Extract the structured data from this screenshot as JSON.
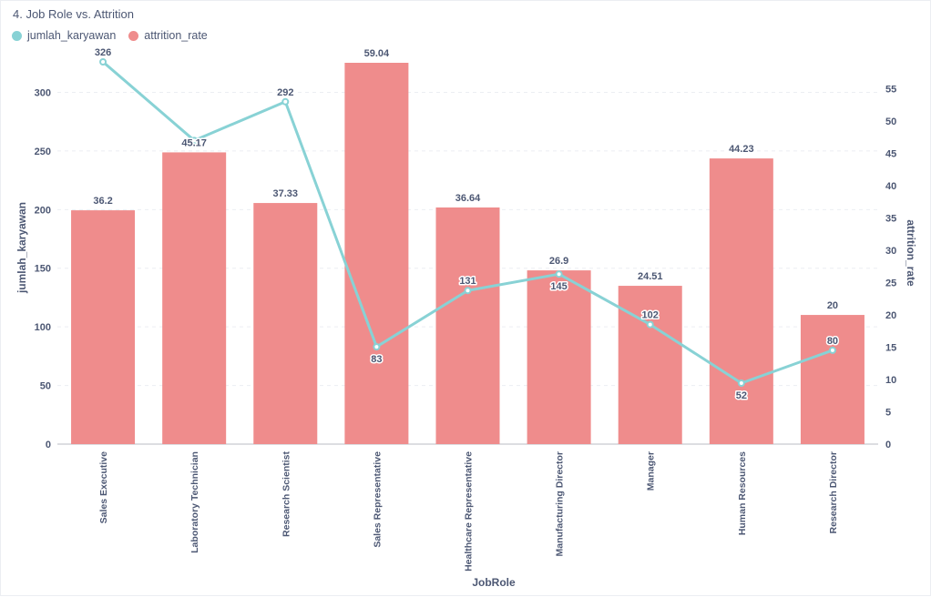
{
  "title": "4. Job Role vs. Attrition",
  "colors": {
    "jumlah_karyawan": "#88d2d5",
    "attrition_rate": "#ef8c8c",
    "text": "#4c5773",
    "grid": "#eceef2"
  },
  "chart_data": {
    "type": "bar",
    "categories": [
      "Sales Executive",
      "Laboratory Technician",
      "Research Scientist",
      "Sales Representative",
      "Healthcare Representative",
      "Manufacturing Director",
      "Manager",
      "Human Resources",
      "Research Director"
    ],
    "series": [
      {
        "name": "jumlah_karyawan",
        "type": "line",
        "axis": "left",
        "values": [
          326,
          259,
          292,
          83,
          131,
          145,
          102,
          52,
          80
        ],
        "labels": [
          "326",
          "",
          "292",
          "83",
          "131",
          "145",
          "102",
          "52",
          "80"
        ]
      },
      {
        "name": "attrition_rate",
        "type": "bar",
        "axis": "right",
        "values": [
          36.2,
          45.17,
          37.33,
          59.04,
          36.64,
          26.9,
          24.51,
          44.23,
          20
        ],
        "labels": [
          "36.2",
          "45.17",
          "37.33",
          "59.04",
          "36.64",
          "26.9",
          "24.51",
          "44.23",
          "20"
        ]
      }
    ],
    "xlabel": "JobRole",
    "ylabel": "jumlah_karyawan",
    "y2label": "attrition_rate",
    "ylim": [
      0,
      326
    ],
    "y2lim": [
      0,
      59.04
    ],
    "yticks": [
      0,
      50,
      100,
      150,
      200,
      250,
      300
    ],
    "y2ticks": [
      0,
      5,
      10,
      15,
      20,
      25,
      30,
      35,
      40,
      45,
      50,
      55
    ],
    "grid": true,
    "legend": "top-left"
  }
}
